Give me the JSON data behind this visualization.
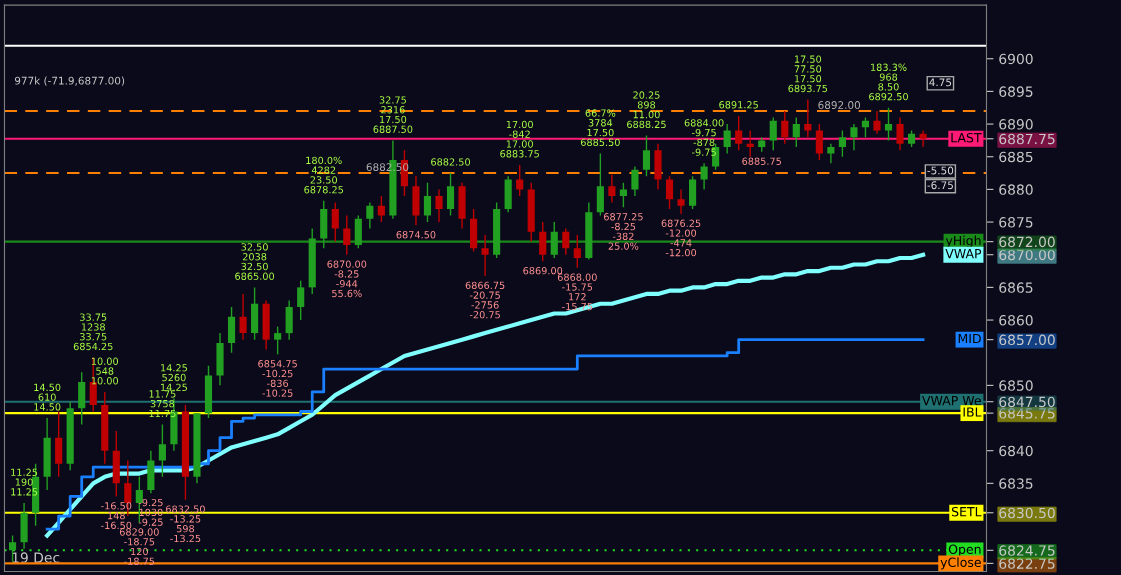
{
  "chart_data": {
    "type": "candlestick",
    "categories": [
      null,
      null,
      "19 Dec",
      null,
      null,
      null,
      null,
      null,
      null,
      null,
      null,
      null,
      null,
      null,
      null,
      null,
      null,
      null,
      null,
      null,
      null,
      null,
      null,
      null,
      null,
      null,
      null,
      null,
      null,
      null,
      null,
      null,
      null,
      null,
      null,
      null,
      null,
      null,
      null,
      null,
      null,
      null,
      null,
      null,
      null,
      null,
      null,
      null,
      null,
      null,
      null,
      null,
      null,
      null,
      null,
      null,
      null,
      null,
      null,
      null,
      null,
      null,
      null,
      null,
      null,
      null,
      null,
      null,
      null,
      null,
      null,
      null,
      null,
      null,
      null,
      null,
      null,
      null,
      null,
      null
    ],
    "ohlc": [
      [
        6824.75,
        6827,
        6823,
        6826
      ],
      [
        6826,
        6832,
        6825,
        6830.5
      ],
      [
        6830.5,
        6838,
        6828.5,
        6836
      ],
      [
        6836,
        6845,
        6834,
        6842
      ],
      [
        6842,
        6846,
        6836,
        6838
      ],
      [
        6838,
        6847.5,
        6837,
        6846.5
      ],
      [
        6846.5,
        6852,
        6844,
        6850.5
      ],
      [
        6850.5,
        6854.25,
        6846,
        6847
      ],
      [
        6847,
        6849,
        6838,
        6840
      ],
      [
        6840,
        6843,
        6833,
        6835
      ],
      [
        6835,
        6838.5,
        6830,
        6832
      ],
      [
        6832,
        6836,
        6829,
        6834
      ],
      [
        6834,
        6840,
        6833.5,
        6838.5
      ],
      [
        6838.5,
        6844,
        6836,
        6841
      ],
      [
        6841,
        6848,
        6840,
        6846
      ],
      [
        6846,
        6847,
        6832.5,
        6836
      ],
      [
        6836,
        6845.75,
        6835,
        6845.75
      ],
      [
        6845.75,
        6853,
        6845,
        6851.5
      ],
      [
        6851.5,
        6858,
        6850,
        6856.5
      ],
      [
        6856.5,
        6862,
        6855,
        6860.5
      ],
      [
        6860.5,
        6864,
        6857,
        6858
      ],
      [
        6858,
        6865,
        6857,
        6862.5
      ],
      [
        6862.5,
        6863,
        6855.5,
        6857
      ],
      [
        6857,
        6859,
        6854.75,
        6858
      ],
      [
        6858,
        6863,
        6857,
        6862
      ],
      [
        6862,
        6866,
        6860,
        6865
      ],
      [
        6865,
        6874,
        6864,
        6872.5
      ],
      [
        6872.5,
        6878.25,
        6871,
        6877
      ],
      [
        6877,
        6878,
        6872,
        6874
      ],
      [
        6874,
        6876,
        6870,
        6871.5
      ],
      [
        6871.5,
        6876,
        6871,
        6875.5
      ],
      [
        6875.5,
        6878,
        6874,
        6877.5
      ],
      [
        6877.5,
        6879,
        6875,
        6876
      ],
      [
        6876,
        6887.5,
        6875.5,
        6884.5
      ],
      [
        6884.5,
        6886,
        6879,
        6880.5
      ],
      [
        6880.5,
        6882,
        6874.5,
        6876
      ],
      [
        6876,
        6881,
        6875,
        6879
      ],
      [
        6879,
        6880,
        6875,
        6877
      ],
      [
        6877,
        6882.5,
        6876,
        6880.5
      ],
      [
        6880.5,
        6881,
        6874,
        6875.5
      ],
      [
        6875.5,
        6877,
        6870.5,
        6871
      ],
      [
        6871,
        6873,
        6866.75,
        6870
      ],
      [
        6870,
        6878,
        6869.5,
        6877
      ],
      [
        6877,
        6882,
        6876.5,
        6881.5
      ],
      [
        6881.5,
        6883.75,
        6879,
        6880
      ],
      [
        6880,
        6881,
        6872,
        6873.5
      ],
      [
        6873.5,
        6875,
        6869,
        6870
      ],
      [
        6870,
        6875,
        6869.5,
        6873.5
      ],
      [
        6873.5,
        6874,
        6870,
        6871
      ],
      [
        6871,
        6873,
        6868,
        6869.5
      ],
      [
        6869.5,
        6878,
        6869.25,
        6876.5
      ],
      [
        6876.5,
        6885.5,
        6876,
        6880.5
      ],
      [
        6880.5,
        6882.25,
        6878,
        6879
      ],
      [
        6879,
        6881,
        6877.25,
        6880
      ],
      [
        6880,
        6883.5,
        6879,
        6883
      ],
      [
        6883,
        6888.25,
        6882,
        6886
      ],
      [
        6886,
        6887,
        6880,
        6881.5
      ],
      [
        6881.5,
        6882,
        6877,
        6878.5
      ],
      [
        6878.5,
        6880,
        6876.25,
        6877.5
      ],
      [
        6877.5,
        6882,
        6877,
        6881.5
      ],
      [
        6881.5,
        6884,
        6880,
        6883.5
      ],
      [
        6883.5,
        6887,
        6883,
        6886.5
      ],
      [
        6886.5,
        6890,
        6885.5,
        6889
      ],
      [
        6889,
        6891.25,
        6886,
        6887
      ],
      [
        6887,
        6889,
        6885,
        6886.5
      ],
      [
        6886.5,
        6888,
        6885.75,
        6887.5
      ],
      [
        6887.5,
        6891,
        6886,
        6890.5
      ],
      [
        6890.5,
        6892,
        6887,
        6888
      ],
      [
        6888,
        6891,
        6886.5,
        6890
      ],
      [
        6890,
        6893.75,
        6888,
        6889
      ],
      [
        6889,
        6890,
        6884.5,
        6885.5
      ],
      [
        6885.5,
        6887,
        6884,
        6886.5
      ],
      [
        6886.5,
        6889,
        6885,
        6888
      ],
      [
        6888,
        6890,
        6886,
        6889.5
      ],
      [
        6889.5,
        6891,
        6888,
        6890.5
      ],
      [
        6890.5,
        6892,
        6888.5,
        6889
      ],
      [
        6889,
        6892.5,
        6887.5,
        6890
      ],
      [
        6890,
        6891,
        6886,
        6887
      ],
      [
        6887,
        6889,
        6886.5,
        6888.5
      ],
      [
        6888.5,
        6889,
        6886.5,
        6887.75
      ]
    ],
    "colors": [
      "#22a022",
      "#22a022",
      "#22a022",
      "#22a022",
      "#c00000",
      "#22a022",
      "#22a022",
      "#c00000",
      "#c00000",
      "#c00000",
      "#c00000",
      "#22a022",
      "#22a022",
      "#22a022",
      "#22a022",
      "#c00000",
      "#22a022",
      "#22a022",
      "#22a022",
      "#22a022",
      "#c00000",
      "#22a022",
      "#c00000",
      "#22a022",
      "#22a022",
      "#22a022",
      "#22a022",
      "#22a022",
      "#c00000",
      "#c00000",
      "#22a022",
      "#22a022",
      "#c00000",
      "#22a022",
      "#c00000",
      "#c00000",
      "#22a022",
      "#c00000",
      "#22a022",
      "#c00000",
      "#c00000",
      "#c00000",
      "#22a022",
      "#22a022",
      "#c00000",
      "#c00000",
      "#c00000",
      "#22a022",
      "#c00000",
      "#c00000",
      "#22a022",
      "#22a022",
      "#c00000",
      "#22a022",
      "#22a022",
      "#22a022",
      "#c00000",
      "#c00000",
      "#c00000",
      "#22a022",
      "#22a022",
      "#22a022",
      "#22a022",
      "#c00000",
      "#c00000",
      "#22a022",
      "#22a022",
      "#c00000",
      "#22a022",
      "#c00000",
      "#c00000",
      "#22a022",
      "#22a022",
      "#22a022",
      "#22a022",
      "#c00000",
      "#22a022",
      "#c00000",
      "#22a022",
      "#c00000"
    ],
    "series": [
      {
        "name": "VWAP",
        "type": "line",
        "color": "#80ffff",
        "values": [
          null,
          null,
          null,
          6827,
          6829,
          6831,
          6833,
          6835,
          6836,
          6836.5,
          6836.5,
          6836.5,
          6837,
          6837,
          6837,
          6837,
          6837.5,
          6838.5,
          6839.5,
          6840.5,
          6841,
          6841.5,
          6842,
          6842.5,
          6843.5,
          6844.5,
          6845.5,
          6847,
          6848.5,
          6849.5,
          6850.5,
          6851.5,
          6852.5,
          6853.5,
          6854.5,
          6855,
          6855.5,
          6856,
          6856.5,
          6857,
          6857.5,
          6858,
          6858.5,
          6859,
          6859.5,
          6860,
          6860.5,
          6861,
          6861,
          6861.5,
          6862,
          6862.5,
          6862.5,
          6863,
          6863.5,
          6864,
          6864,
          6864.5,
          6864.5,
          6865,
          6865,
          6865.5,
          6865.5,
          6866,
          6866,
          6866.5,
          6866.5,
          6867,
          6867,
          6867.5,
          6867.5,
          6868,
          6868,
          6868.5,
          6868.5,
          6869,
          6869,
          6869.5,
          6869.5,
          6870
        ]
      },
      {
        "name": "MID",
        "type": "step",
        "color": "#1a80ff",
        "values": [
          null,
          null,
          null,
          6828,
          6830,
          6833,
          6836,
          6837.5,
          6837.5,
          6837.5,
          6837.5,
          6837.5,
          6837.5,
          6837.5,
          6837.5,
          6837.5,
          6838,
          6840,
          6842,
          6844.5,
          6845,
          6845.5,
          6845.5,
          6845.5,
          6845.5,
          6846,
          6849,
          6852.5,
          6852.5,
          6852.5,
          6852.5,
          6852.5,
          6852.5,
          6852.5,
          6852.5,
          6852.5,
          6852.5,
          6852.5,
          6852.5,
          6852.5,
          6852.5,
          6852.5,
          6852.5,
          6852.5,
          6852.5,
          6852.5,
          6852.5,
          6852.5,
          6852.5,
          6854.5,
          6854.5,
          6854.5,
          6854.5,
          6854.5,
          6854.5,
          6854.5,
          6854.5,
          6854.5,
          6854.5,
          6854.5,
          6854.5,
          6854.5,
          6855,
          6857,
          6857,
          6857,
          6857,
          6857,
          6857,
          6857,
          6857,
          6857,
          6857,
          6857,
          6857,
          6857,
          6857,
          6857,
          6857,
          6857
        ]
      }
    ],
    "ylim": [
      6821.5,
      6908.2
    ],
    "legend": "right",
    "yticks": [
      {
        "value": 6822.75,
        "label": "6822.75"
      },
      {
        "value": 6824.75,
        "label": "6824.75"
      },
      {
        "value": 6830.5,
        "label": "6830.50"
      },
      6835,
      6840,
      {
        "value": 6845.75,
        "label": "6845.75"
      },
      {
        "value": 6847.5,
        "label": "6847.50"
      },
      6850,
      {
        "value": 6857,
        "label": "6857.00"
      },
      6860,
      6865,
      {
        "value": 6870,
        "label": "6870.00"
      },
      {
        "value": 6872,
        "label": "6872.00"
      },
      6875,
      6880,
      6885,
      {
        "value": 6887.75,
        "label": "6887.75"
      },
      6890,
      6895,
      6900
    ],
    "ref_lines": [
      {
        "axis": "y",
        "value": 6902,
        "color": "#ffffff"
      },
      {
        "axis": "y",
        "value": 6892,
        "label": "6892.00",
        "color": "#ff8000",
        "line_style": "dashed"
      },
      {
        "axis": "y",
        "value": 6882.5,
        "label": "6882.50",
        "color": "#ff8000",
        "line_style": "dashed"
      },
      {
        "axis": "y",
        "value": 6887.75,
        "label": "LAST",
        "color": "#ff1a75"
      },
      {
        "axis": "y",
        "value": 6872,
        "label": "yHigh",
        "color": "#1a8a1a"
      },
      {
        "axis": "y",
        "value": 6847.5,
        "label": "VWAP We",
        "color": "#1f7070"
      },
      {
        "axis": "y",
        "value": 6845.75,
        "label": "IBL",
        "color": "#ffff00"
      },
      {
        "axis": "y",
        "value": 6830.5,
        "label": "SETL",
        "color": "#ffff00"
      },
      {
        "axis": "y",
        "value": 6824.75,
        "label": "Open",
        "color": "#22dd22",
        "line_style": "dotted"
      },
      {
        "axis": "y",
        "value": 6822.75,
        "label": "yClose",
        "color": "#ff7f00"
      }
    ],
    "annotations": [
      "977k (-71.9,6877.00)",
      {
        "text": "11.25\n190\n11.25",
        "y": 6832
      },
      {
        "text": "14.50\n610\n14.50",
        "y": 6845
      },
      {
        "text": "33.75\n1238\n33.75\n6854.25",
        "y": 6854.25
      },
      {
        "text": "10.00\n548\n10.00",
        "y": 6849
      },
      {
        "text": "11.75\n3758\n11.75",
        "y": 6844
      },
      {
        "text": "14.25\n5260\n14.25",
        "y": 6848
      },
      {
        "text": "32.50\n2038\n32.50\n6865.00",
        "y": 6865
      },
      {
        "text": "180.0%\n4282\n23.50\n6878.25",
        "y": 6878.25
      },
      {
        "text": "32.75\n2316\n17.50\n6887.50",
        "y": 6887.5
      },
      {
        "text": "6882.50",
        "y": 6882.5
      },
      {
        "text": "17.00\n-842\n17.00\n6883.75",
        "y": 6883.75
      },
      {
        "text": "66.7%\n3784\n17.50\n6885.50",
        "y": 6885.5
      },
      {
        "text": "20.25\n898\n11.00\n6888.25",
        "y": 6888.25
      },
      {
        "text": "6891.25",
        "y": 6891.25
      },
      {
        "text": "17.50\n77.50\n17.50\n6893.75",
        "y": 6893.75
      },
      {
        "text": "183.3%\n968\n8.50\n6892.50",
        "y": 6892.5
      },
      {
        "text": "-16.50\n148\n-16.50",
        "y": 6833
      },
      {
        "text": "6829.00\n-18.75\n120\n-18.75",
        "y": 6829
      },
      {
        "text": "-9.25\n1030\n-9.25",
        "y": 6833.5
      },
      {
        "text": "6832.50\n-13.25\n598\n-13.25",
        "y": 6832.5
      },
      {
        "text": "6854.75\n-10.25\n-836\n-10.25",
        "y": 6854.75
      },
      {
        "text": "6870.00\n-8.25\n-944\n55.6%",
        "y": 6870
      },
      {
        "text": "6874.50",
        "y": 6874.5
      },
      {
        "text": "6866.75\n-20.75\n-2756\n-20.75",
        "y": 6866.75
      },
      {
        "text": "6869.00",
        "y": 6869
      },
      {
        "text": "6868.00\n-15.75\n172\n-15.75",
        "y": 6868
      },
      {
        "text": "6877.25\n-8.25\n-382\n25.0%",
        "y": 6877.25
      },
      {
        "text": "6876.25\n-12.00\n-474\n-12.00",
        "y": 6876.25
      },
      {
        "text": "6885.75",
        "y": 6885.75
      },
      {
        "text": "6884.00\n-9.75\n-878\n-9.75",
        "y": 6884
      },
      {
        "text": "4.75",
        "y": 6896.25
      },
      {
        "text": "-5.50",
        "y": 6882.75
      },
      {
        "text": "-6.75",
        "y": 6880.5
      }
    ]
  }
}
